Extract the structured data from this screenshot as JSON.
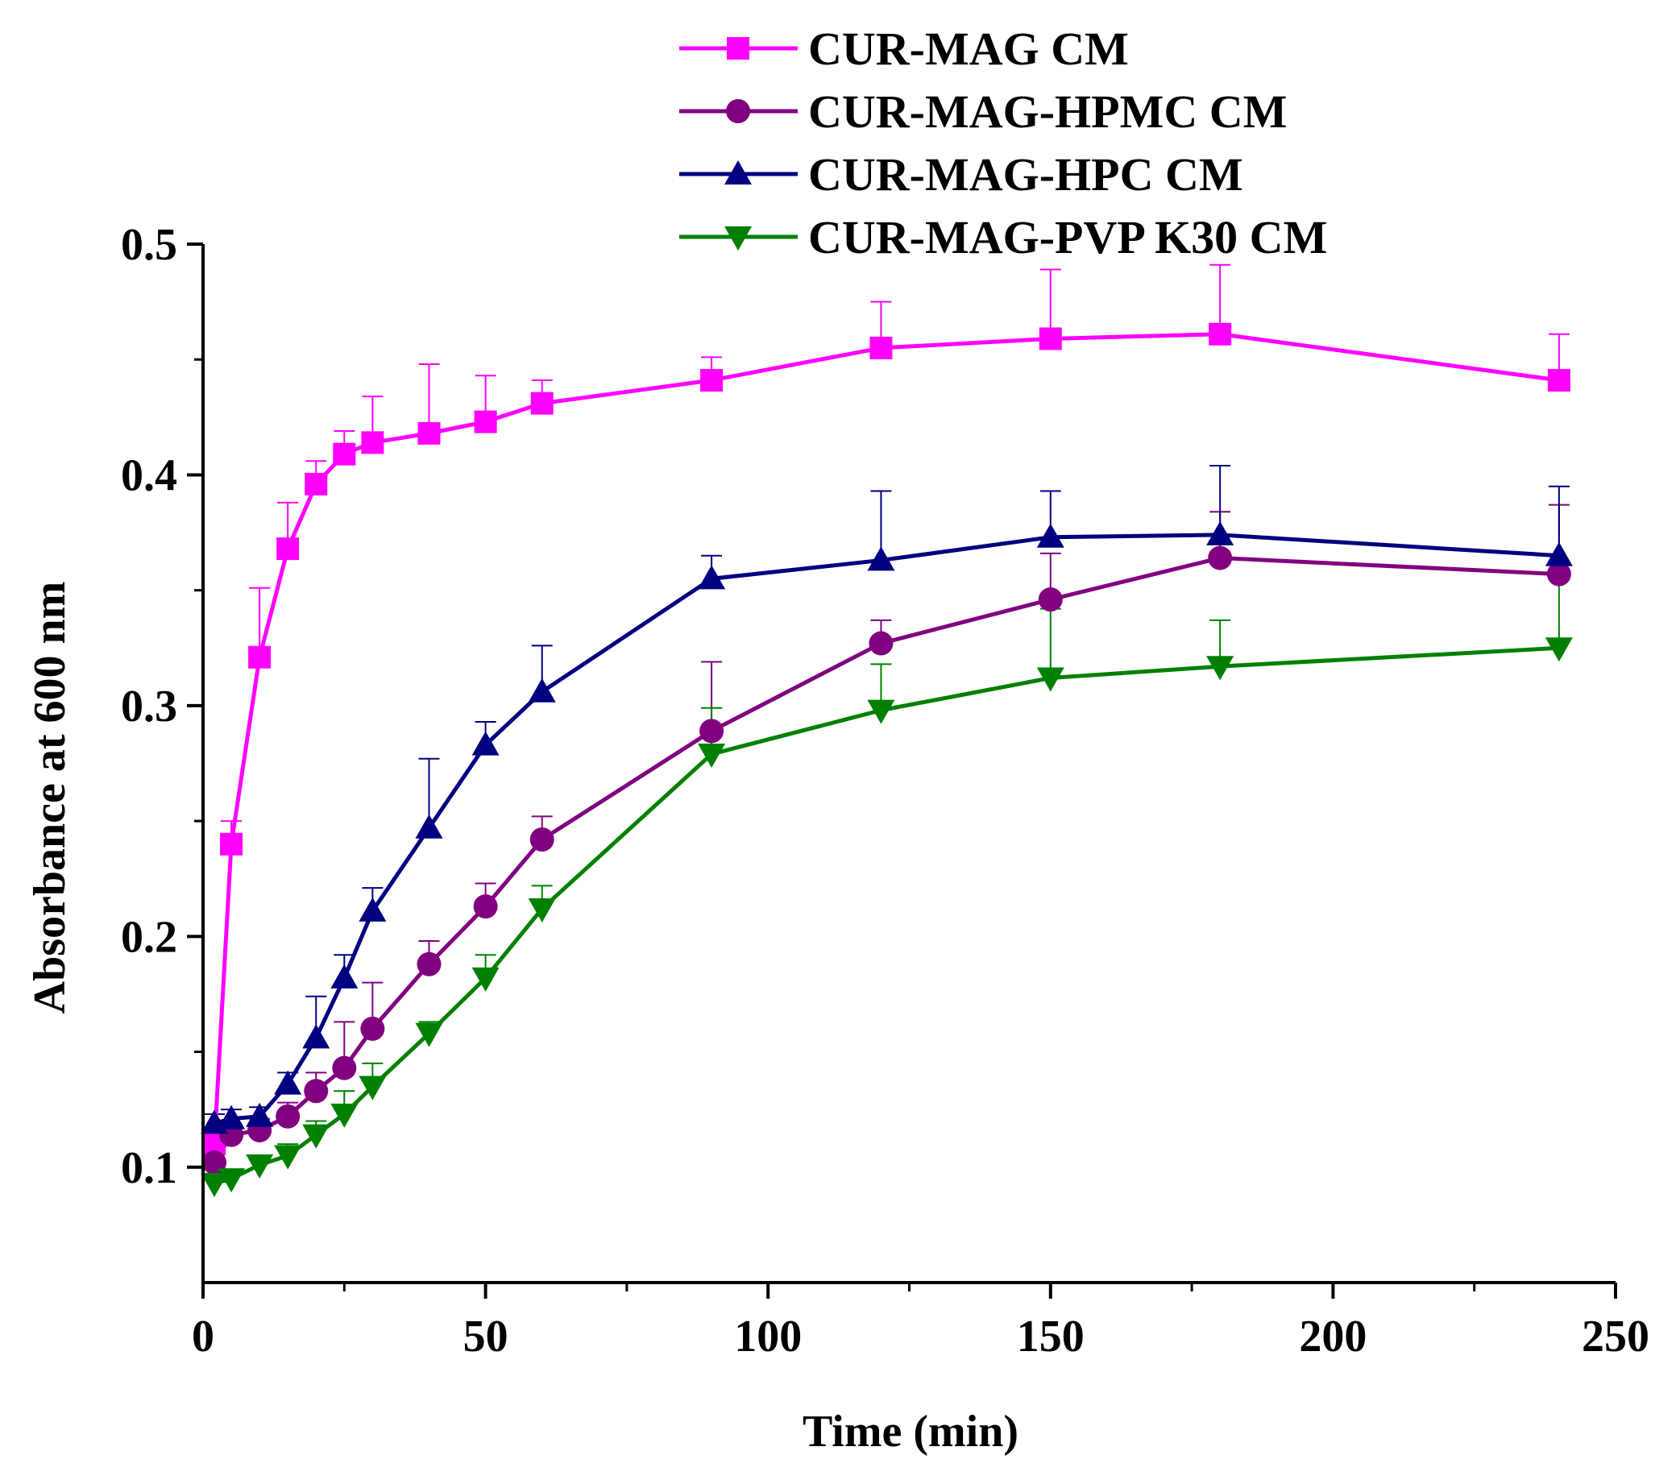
{
  "chart_data": {
    "type": "line",
    "title": "",
    "xlabel": "Time (min)",
    "ylabel": "Absorbance at 600 nm",
    "xlim": [
      0,
      250
    ],
    "ylim": [
      0.05,
      0.5
    ],
    "x_ticks": [
      0,
      50,
      100,
      150,
      200,
      250
    ],
    "x_tick_labels": [
      "0",
      "50",
      "100",
      "150",
      "200",
      "250"
    ],
    "y_ticks": [
      0.1,
      0.2,
      0.3,
      0.4,
      0.5
    ],
    "y_tick_labels": [
      "0.1",
      "0.2",
      "0.3",
      "0.4",
      "0.5"
    ],
    "grid": false,
    "legend_position": "top",
    "series": [
      {
        "name": "CUR-MAG CM",
        "color": "#FF00FF",
        "marker": "square",
        "x": [
          2,
          5,
          10,
          15,
          20,
          25,
          30,
          40,
          50,
          60,
          90,
          120,
          150,
          180,
          240
        ],
        "y": [
          0.11,
          0.24,
          0.321,
          0.368,
          0.396,
          0.409,
          0.414,
          0.418,
          0.423,
          0.431,
          0.441,
          0.455,
          0.459,
          0.461,
          0.441
        ],
        "err": [
          0.005,
          0.01,
          0.03,
          0.02,
          0.01,
          0.01,
          0.02,
          0.03,
          0.02,
          0.01,
          0.01,
          0.02,
          0.03,
          0.03,
          0.02
        ]
      },
      {
        "name": "CUR-MAG-HPMC CM",
        "color": "#800080",
        "marker": "circle",
        "x": [
          2,
          5,
          10,
          15,
          20,
          25,
          30,
          40,
          50,
          60,
          90,
          120,
          150,
          180,
          240
        ],
        "y": [
          0.102,
          0.114,
          0.116,
          0.122,
          0.133,
          0.143,
          0.16,
          0.188,
          0.213,
          0.242,
          0.289,
          0.327,
          0.346,
          0.364,
          0.357
        ],
        "err": [
          0.005,
          0.005,
          0.005,
          0.006,
          0.008,
          0.02,
          0.02,
          0.01,
          0.01,
          0.01,
          0.03,
          0.01,
          0.02,
          0.02,
          0.03
        ]
      },
      {
        "name": "CUR-MAG-HPC CM",
        "color": "#000080",
        "marker": "triangle-up",
        "x": [
          2,
          5,
          10,
          15,
          20,
          25,
          30,
          40,
          50,
          60,
          90,
          120,
          150,
          180,
          240
        ],
        "y": [
          0.119,
          0.121,
          0.122,
          0.136,
          0.156,
          0.182,
          0.211,
          0.247,
          0.283,
          0.306,
          0.355,
          0.363,
          0.373,
          0.374,
          0.365
        ],
        "err": [
          0.004,
          0.004,
          0.004,
          0.005,
          0.018,
          0.01,
          0.01,
          0.03,
          0.01,
          0.02,
          0.01,
          0.03,
          0.02,
          0.03,
          0.03
        ]
      },
      {
        "name": "CUR-MAG-PVP K30 CM",
        "color": "#008000",
        "marker": "triangle-down",
        "x": [
          2,
          5,
          10,
          15,
          20,
          25,
          30,
          40,
          50,
          60,
          90,
          120,
          150,
          180,
          240
        ],
        "y": [
          0.093,
          0.095,
          0.101,
          0.105,
          0.114,
          0.123,
          0.135,
          0.158,
          0.182,
          0.212,
          0.279,
          0.298,
          0.312,
          0.317,
          0.325
        ],
        "err": [
          0.004,
          0.004,
          0.004,
          0.005,
          0.006,
          0.01,
          0.01,
          0.005,
          0.01,
          0.01,
          0.02,
          0.02,
          0.03,
          0.02,
          0.03
        ]
      }
    ]
  }
}
